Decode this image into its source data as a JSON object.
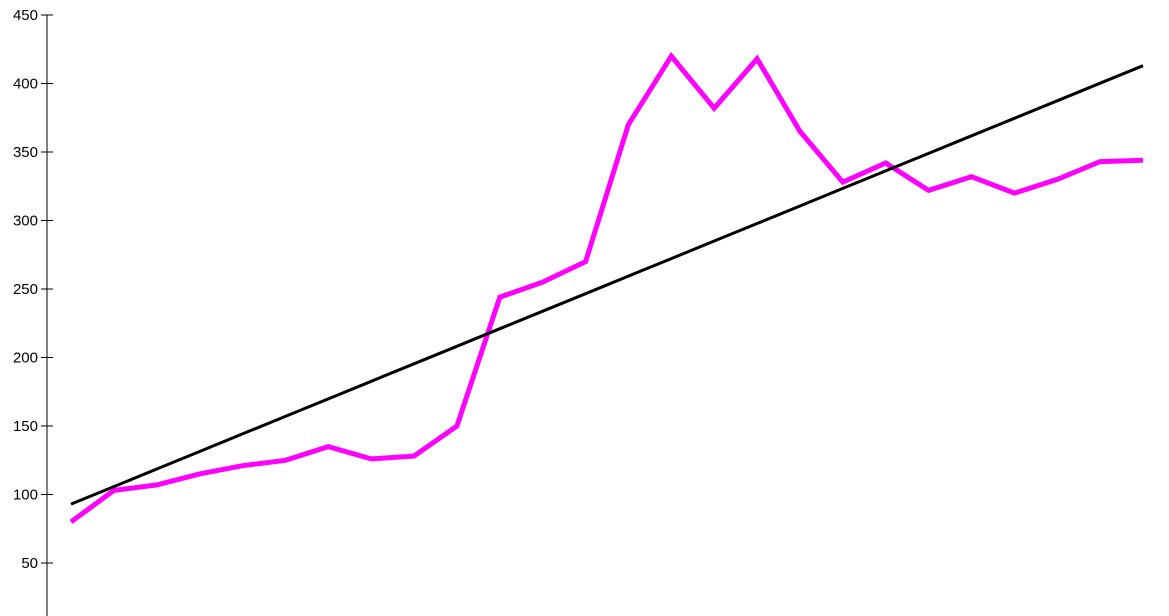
{
  "chart_data": {
    "type": "line",
    "title": "",
    "xlabel": "",
    "ylabel": "",
    "ylim": [
      25,
      450
    ],
    "y_ticks": [
      50,
      100,
      150,
      200,
      250,
      300,
      350,
      400,
      450
    ],
    "y_tick_labels": [
      "50",
      "100",
      "150",
      "200",
      "250",
      "300",
      "350",
      "400",
      "450"
    ],
    "x_visible": false,
    "grid": false,
    "legend": "none",
    "x": [
      0,
      1,
      2,
      3,
      4,
      5,
      6,
      7,
      8,
      9,
      10,
      11,
      12,
      13,
      14,
      15,
      16,
      17,
      18,
      19,
      20,
      21,
      22,
      23,
      24,
      25
    ],
    "series": [
      {
        "kind": "data",
        "color": "#ff00ff",
        "values": [
          80,
          103,
          107,
          115,
          121,
          125,
          135,
          126,
          128,
          150,
          244,
          255,
          270,
          370,
          420,
          382,
          418,
          365,
          328,
          342,
          322,
          332,
          320,
          330,
          343,
          344
        ]
      },
      {
        "kind": "trend",
        "color": "#000000",
        "values": [
          93,
          105.8,
          118.6,
          131.4,
          144.2,
          157,
          169.8,
          182.6,
          195.4,
          208.2,
          221,
          233.8,
          246.6,
          259.4,
          272.2,
          285,
          297.8,
          310.6,
          323.4,
          336.2,
          349,
          361.8,
          374.6,
          387.4,
          400.2,
          413
        ]
      }
    ]
  }
}
